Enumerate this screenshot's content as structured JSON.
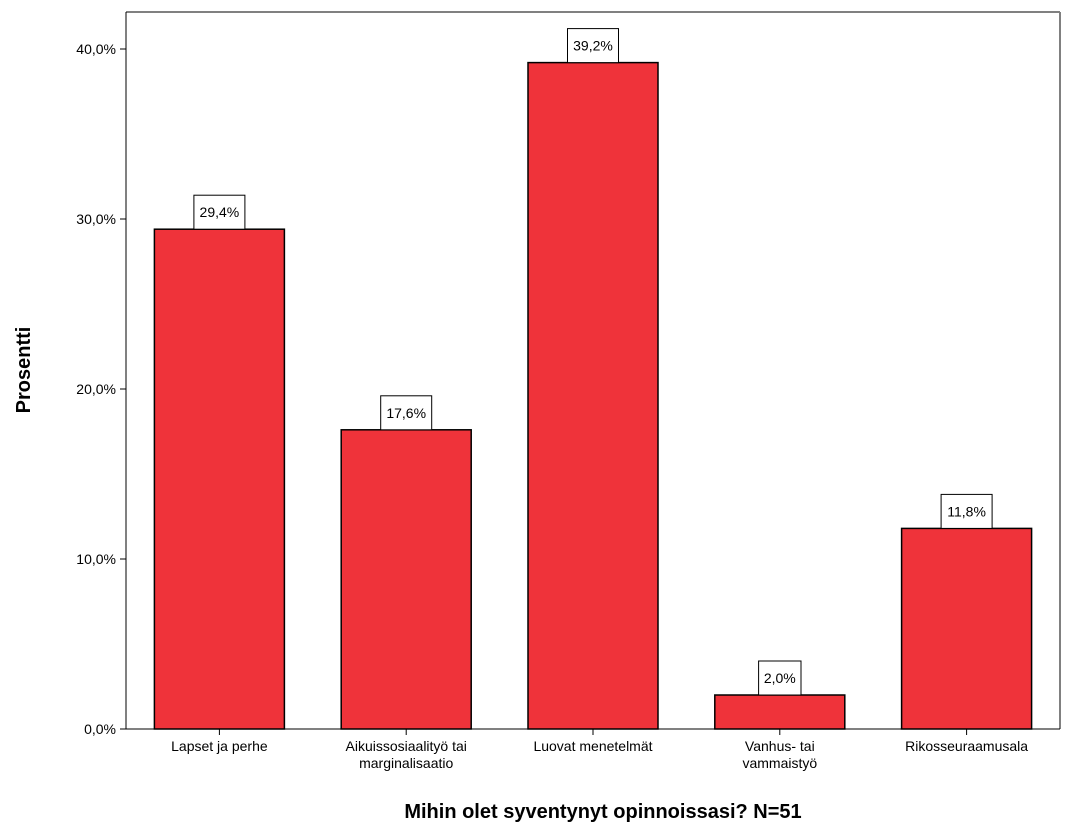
{
  "chart_data": {
    "type": "bar",
    "title": "",
    "xlabel": "Mihin olet syventynyt opinnoissasi? N=51",
    "ylabel": "Prosentti",
    "ylim": [
      0,
      42
    ],
    "yticks": [
      0,
      10,
      20,
      30,
      40
    ],
    "ytick_labels": [
      "0,0%",
      "10,0%",
      "20,0%",
      "30,0%",
      "40,0%"
    ],
    "categories": [
      [
        "Lapset ja perhe"
      ],
      [
        "Aikuissosiaalityö tai",
        "marginalisaatio"
      ],
      [
        "Luovat menetelmät"
      ],
      [
        "Vanhus- tai",
        "vammaistyö"
      ],
      [
        "Rikosseuraamusala"
      ]
    ],
    "values": [
      29.4,
      17.6,
      39.2,
      2.0,
      11.8
    ],
    "value_labels": [
      "29,4%",
      "17,6%",
      "39,2%",
      "2,0%",
      "11,8%"
    ],
    "bar_color": "#ef333a",
    "grid": false,
    "legend": "none"
  }
}
